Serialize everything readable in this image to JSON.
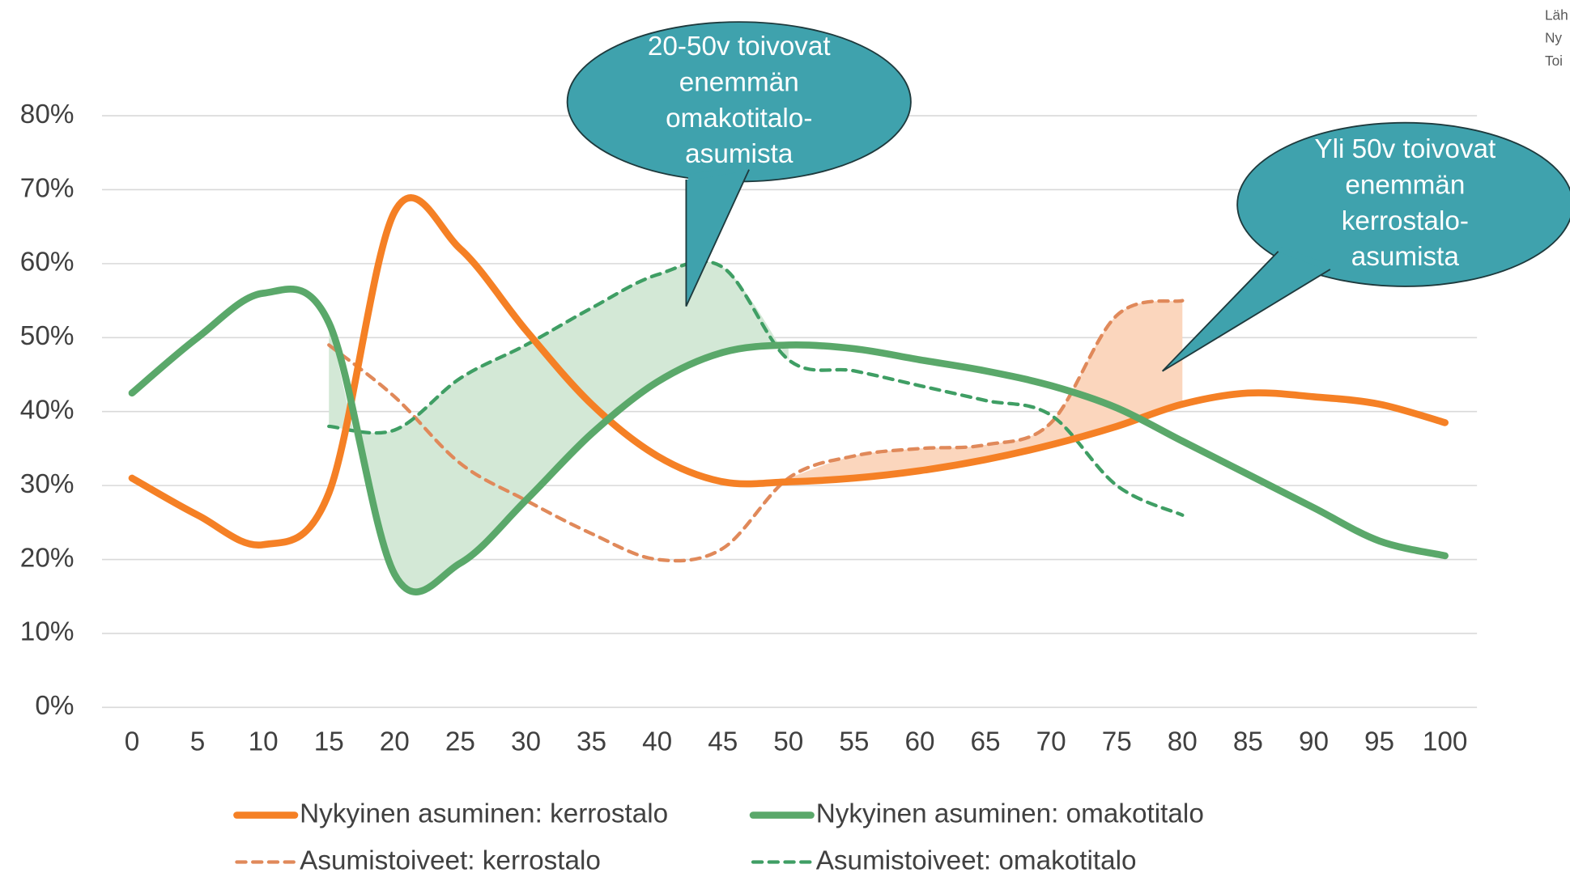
{
  "chart_data": {
    "type": "line",
    "x": [
      0,
      5,
      10,
      15,
      20,
      25,
      30,
      35,
      40,
      45,
      50,
      55,
      60,
      65,
      70,
      75,
      80,
      85,
      90,
      95,
      100
    ],
    "ylim": [
      0,
      80
    ],
    "yticks": [
      {
        "value": 0,
        "label": "0%"
      },
      {
        "value": 10,
        "label": "10%"
      },
      {
        "value": 20,
        "label": "20%"
      },
      {
        "value": 30,
        "label": "30%"
      },
      {
        "value": 40,
        "label": "40%"
      },
      {
        "value": 50,
        "label": "50%"
      },
      {
        "value": 60,
        "label": "60%"
      },
      {
        "value": 70,
        "label": "70%"
      },
      {
        "value": 80,
        "label": "80%"
      }
    ],
    "grid": true,
    "series": [
      {
        "name": "Nykyinen asuminen: kerrostalo",
        "color": "#f58025",
        "style": "solid",
        "values": [
          31,
          26,
          22,
          29,
          67,
          62,
          51,
          41,
          34,
          30.5,
          30.5,
          31,
          32,
          33.5,
          35.5,
          38,
          41,
          42.5,
          42,
          41,
          38.5
        ]
      },
      {
        "name": "Nykyinen asuminen: omakotitalo",
        "color": "#5aa86a",
        "style": "solid",
        "values": [
          42.5,
          50,
          56,
          52,
          18,
          19.5,
          28,
          37,
          44,
          48,
          49,
          48.5,
          47,
          45.5,
          43.5,
          40.5,
          36,
          31.5,
          27,
          22.5,
          20.5
        ]
      },
      {
        "name": "Asumistoiveet: kerrostalo",
        "color": "#e0895a",
        "style": "dashed",
        "values": [
          null,
          null,
          null,
          49,
          42,
          33,
          28,
          23.5,
          20,
          21.5,
          31,
          34,
          35,
          35.5,
          38.5,
          53,
          55,
          null,
          null,
          null,
          null
        ]
      },
      {
        "name": "Asumistoiveet: omakotitalo",
        "color": "#3f9e64",
        "style": "dashed",
        "values": [
          null,
          null,
          null,
          38,
          37.5,
          44.5,
          49,
          54,
          58.5,
          59.5,
          47,
          45.5,
          43.5,
          41.5,
          39.5,
          30,
          26,
          null,
          null,
          null,
          null
        ]
      }
    ],
    "annotations": [
      {
        "lines": [
          "20-50v toivovat",
          "enemmän",
          "omakotitalo-",
          "asumista"
        ]
      },
      {
        "lines": [
          "Yli 50v toivovat",
          "enemmän",
          "kerrostalo-",
          "asumista"
        ]
      }
    ],
    "source_lines": [
      "Läh",
      "Ny",
      "Toi"
    ]
  }
}
